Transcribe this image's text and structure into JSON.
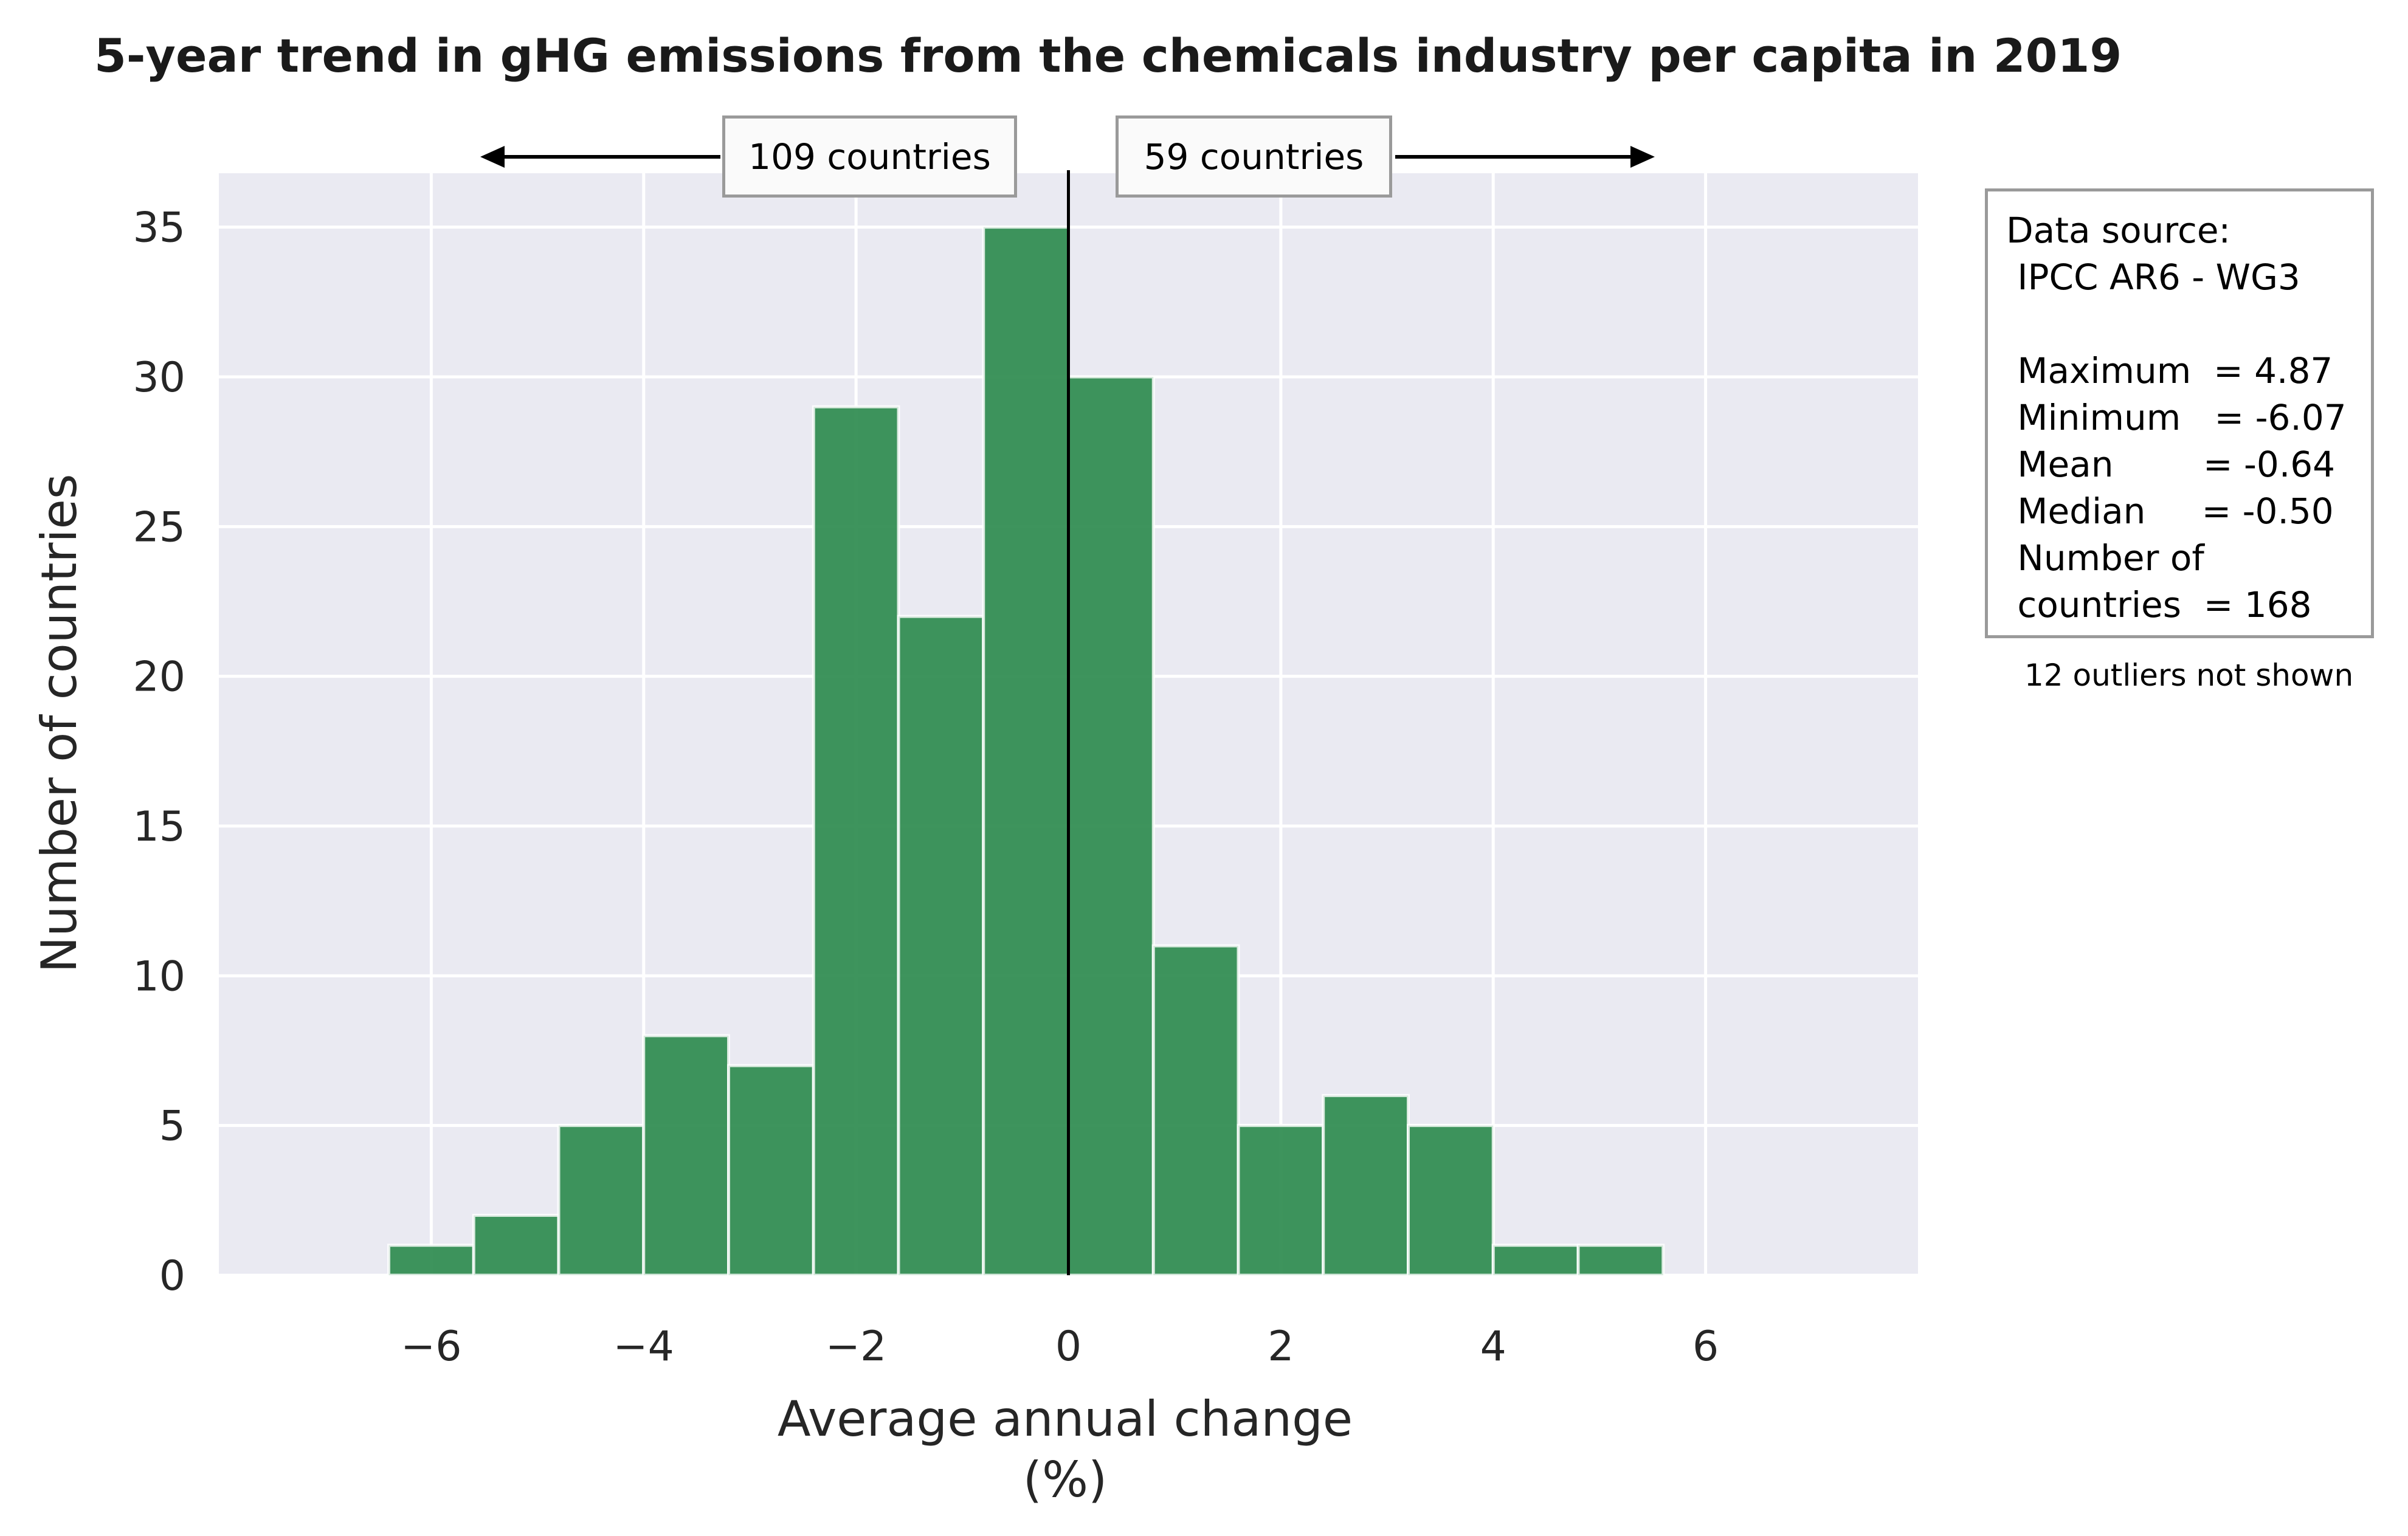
{
  "chart_data": {
    "type": "bar",
    "title": "5-year trend in gHG emissions from the chemicals industry per capita in 2019",
    "xlabel_line1": "Average annual change",
    "xlabel_line2": "(%)",
    "ylabel": "Number of countries",
    "xlim": [
      -8,
      8
    ],
    "ylim": [
      0,
      36.8
    ],
    "xticks": [
      -6,
      -4,
      -2,
      0,
      2,
      4,
      6
    ],
    "xtick_labels": [
      "−6",
      "−4",
      "−2",
      "0",
      "2",
      "4",
      "6"
    ],
    "yticks": [
      0,
      5,
      10,
      15,
      20,
      25,
      30,
      35
    ],
    "ytick_labels": [
      "0",
      "5",
      "10",
      "15",
      "20",
      "25",
      "30",
      "35"
    ],
    "grid": true,
    "bin_edges": [
      -6.4,
      -5.6,
      -4.8,
      -4.0,
      -3.2,
      -2.4,
      -1.6,
      -0.8,
      0.0,
      0.8,
      1.6,
      2.4,
      3.2,
      4.0,
      4.8,
      5.6
    ],
    "values": [
      1,
      2,
      5,
      8,
      7,
      29,
      22,
      35,
      30,
      11,
      5,
      6,
      5,
      1,
      1
    ],
    "bar_color": "#2e8b4f",
    "background_color": "#eaeaf2",
    "zero_line": 0
  },
  "annotations": {
    "left_count": "109 countries",
    "right_count": "59 countries"
  },
  "stats_box": {
    "lines": [
      "Data source:",
      " IPCC AR6 - WG3",
      "",
      " Maximum  = 4.87",
      " Minimum   = -6.07",
      " Mean        = -0.64",
      " Median     = -0.50",
      " Number of",
      " countries  = 168"
    ],
    "footnote": "12 outliers not shown"
  }
}
